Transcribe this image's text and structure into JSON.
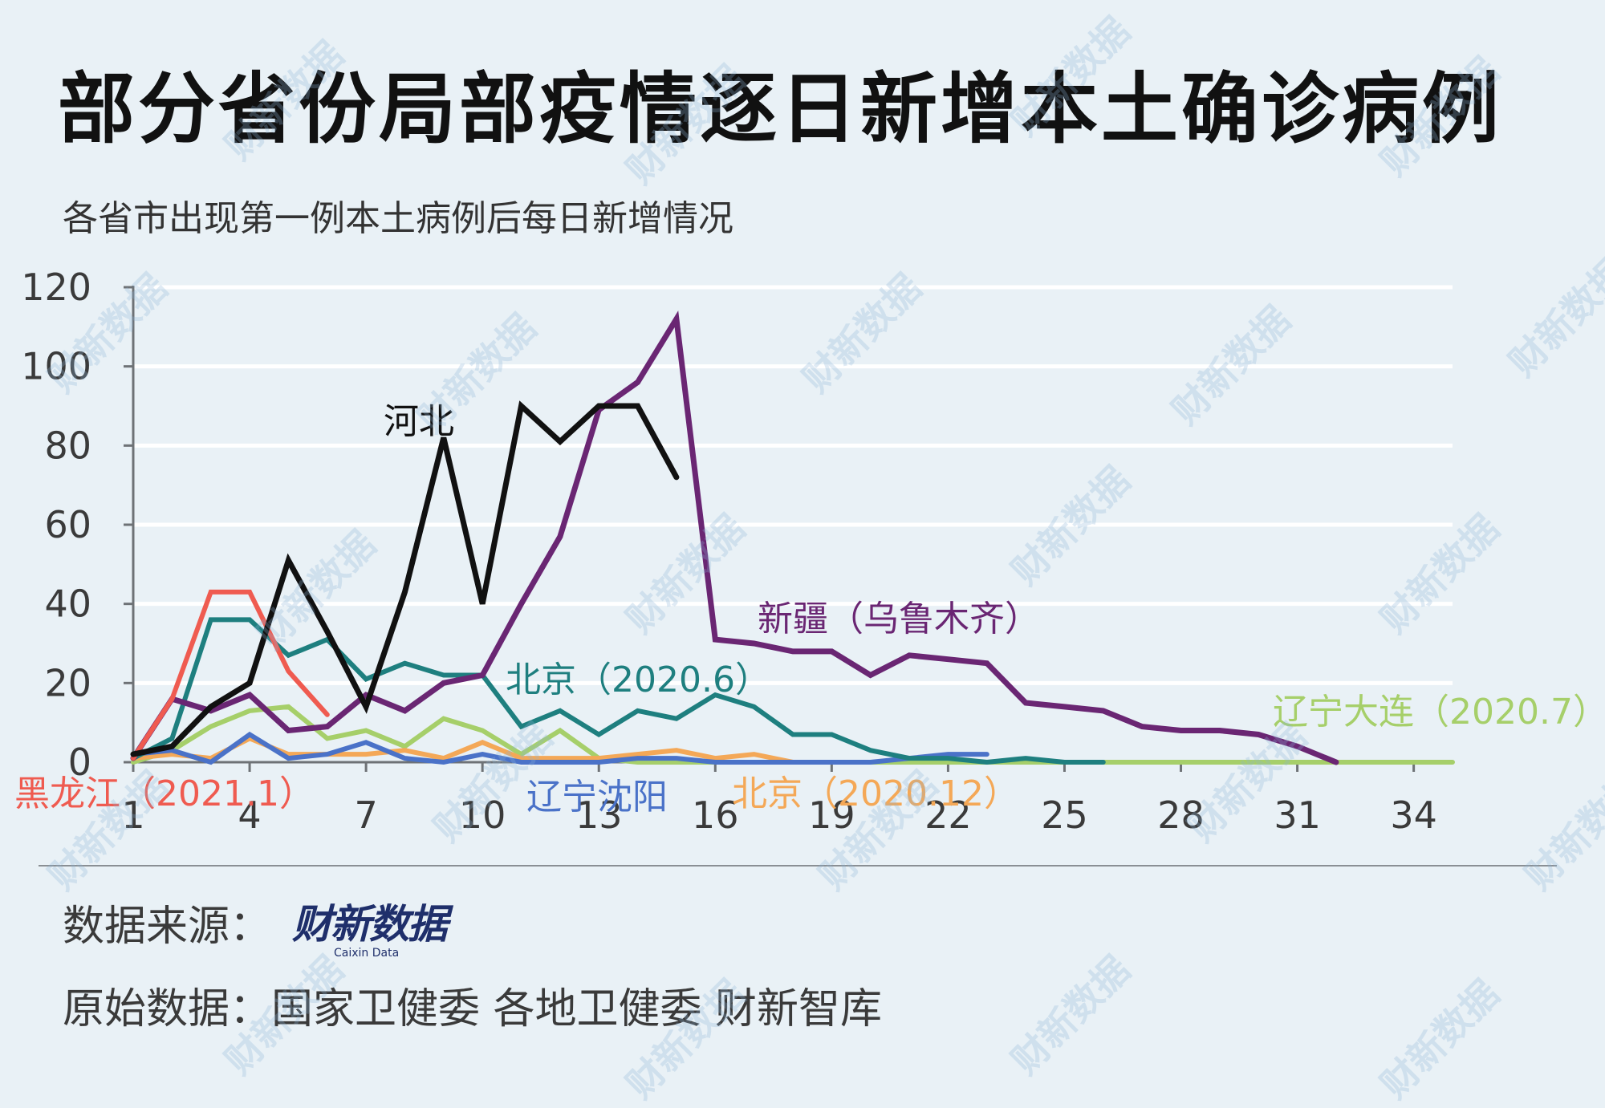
{
  "title": "部分省份局部疫情逐日新增本土确诊病例",
  "subtitle": "各省市出现第一例本土病例后每日新增情况",
  "source_label": "数据来源：",
  "logo": {
    "cn": "财新数据",
    "en": "Caixin Data"
  },
  "raw_data": "原始数据：国家卫健委  各地卫健委  财新智库",
  "watermark_text": "财新数据",
  "chart_data": {
    "type": "line",
    "title": "部分省份局部疫情逐日新增本土确诊病例",
    "subtitle": "各省市出现第一例本土病例后每日新增情况",
    "xlabel": "",
    "ylabel": "",
    "xlim": [
      1,
      35
    ],
    "ylim": [
      0,
      120
    ],
    "x_ticks": [
      1,
      4,
      7,
      10,
      13,
      16,
      19,
      22,
      25,
      28,
      31,
      34
    ],
    "y_ticks": [
      0,
      20,
      40,
      60,
      80,
      100,
      120
    ],
    "grid": "horizontal",
    "series": [
      {
        "name": "辽宁大连（2020.7）",
        "color": "#a6cf6a",
        "x": [
          1,
          2,
          3,
          4,
          5,
          6,
          7,
          8,
          9,
          10,
          11,
          12,
          13,
          14,
          15,
          16,
          17,
          18,
          19,
          20,
          21,
          22,
          23,
          24,
          25,
          26,
          27,
          28,
          29,
          30,
          31,
          32,
          33,
          34,
          35
        ],
        "y": [
          0,
          3,
          9,
          13,
          14,
          6,
          8,
          4,
          11,
          8,
          2,
          8,
          1,
          0,
          0,
          0,
          0,
          0,
          0,
          0,
          0,
          0,
          0,
          0,
          0,
          0,
          0,
          0,
          0,
          0,
          0,
          0,
          0,
          0,
          0
        ]
      },
      {
        "name": "北京（2020.12）",
        "color": "#f4a857",
        "x": [
          1,
          2,
          3,
          4,
          5,
          6,
          7,
          8,
          9,
          10,
          11,
          12,
          13,
          14,
          15,
          16,
          17,
          18,
          19
        ],
        "y": [
          1,
          2,
          1,
          6,
          2,
          2,
          2,
          3,
          1,
          5,
          1,
          1,
          1,
          2,
          3,
          1,
          2,
          0,
          0
        ]
      },
      {
        "name": "辽宁沈阳",
        "color": "#4a72c8",
        "x": [
          1,
          2,
          3,
          4,
          5,
          6,
          7,
          8,
          9,
          10,
          11,
          12,
          13,
          14,
          15,
          16,
          17,
          18,
          19,
          20,
          21,
          22,
          23
        ],
        "y": [
          2,
          3,
          0,
          7,
          1,
          2,
          5,
          1,
          0,
          2,
          0,
          0,
          0,
          1,
          1,
          0,
          0,
          0,
          0,
          0,
          1,
          2,
          2
        ]
      },
      {
        "name": "北京（2020.6）",
        "color": "#1e7f7f",
        "x": [
          1,
          2,
          3,
          4,
          5,
          6,
          7,
          8,
          9,
          10,
          11,
          12,
          13,
          14,
          15,
          16,
          17,
          18,
          19,
          20,
          21,
          22,
          23,
          24,
          25,
          26
        ],
        "y": [
          1,
          6,
          36,
          36,
          27,
          31,
          21,
          25,
          22,
          22,
          9,
          13,
          7,
          13,
          11,
          17,
          14,
          7,
          7,
          3,
          1,
          1,
          0,
          1,
          0,
          0
        ]
      },
      {
        "name": "新疆（乌鲁木齐）",
        "color": "#6a2673",
        "x": [
          1,
          2,
          3,
          4,
          5,
          6,
          7,
          8,
          9,
          10,
          11,
          12,
          13,
          14,
          15,
          16,
          17,
          18,
          19,
          20,
          21,
          22,
          23,
          24,
          25,
          26,
          27,
          28,
          29,
          30,
          31,
          32
        ],
        "y": [
          1,
          16,
          13,
          17,
          8,
          9,
          17,
          13,
          20,
          22,
          40,
          57,
          89,
          96,
          112,
          31,
          30,
          28,
          28,
          22,
          27,
          26,
          25,
          15,
          14,
          13,
          9,
          8,
          8,
          7,
          4,
          0
        ]
      },
      {
        "name": "黑龙江（2021.1）",
        "color": "#ef5b50",
        "x": [
          1,
          2,
          3,
          4,
          5,
          6
        ],
        "y": [
          1,
          16,
          43,
          43,
          23,
          12
        ]
      },
      {
        "name": "河北",
        "color": "#111111",
        "x": [
          1,
          2,
          3,
          4,
          5,
          6,
          7,
          8,
          9,
          10,
          11,
          12,
          13,
          14,
          15
        ],
        "y": [
          2,
          4,
          14,
          20,
          51,
          33,
          14,
          43,
          82,
          40,
          90,
          81,
          90,
          90,
          72
        ]
      }
    ]
  }
}
